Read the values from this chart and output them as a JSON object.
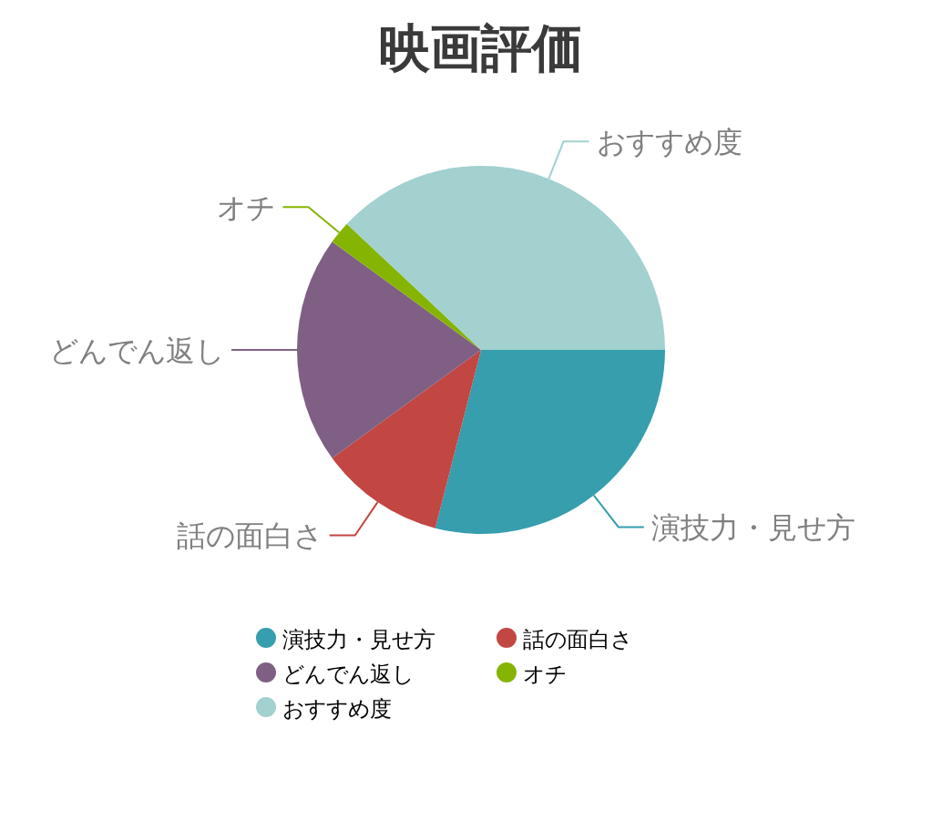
{
  "chart_data": {
    "type": "pie",
    "title": "映画評価",
    "categories": [
      "演技力・見せ方",
      "話の面白さ",
      "どんでん返し",
      "オチ",
      "おすすめ度"
    ],
    "values": [
      29,
      11,
      20,
      2,
      38
    ],
    "colors": [
      "#369ead",
      "#c24642",
      "#7f6084",
      "#86b402",
      "#a2d1cf"
    ],
    "legend": "bottom"
  }
}
